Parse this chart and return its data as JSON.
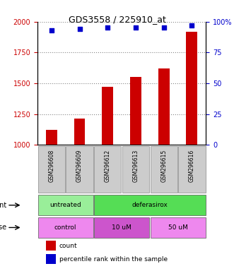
{
  "title": "GDS3558 / 225910_at",
  "samples": [
    "GSM296608",
    "GSM296609",
    "GSM296612",
    "GSM296613",
    "GSM296615",
    "GSM296616"
  ],
  "counts": [
    1120,
    1210,
    1470,
    1550,
    1620,
    1920
  ],
  "percentiles": [
    93,
    94,
    95,
    95,
    95,
    97
  ],
  "ylim_left": [
    1000,
    2000
  ],
  "ylim_right": [
    0,
    100
  ],
  "yticks_left": [
    1000,
    1250,
    1500,
    1750,
    2000
  ],
  "yticks_right": [
    0,
    25,
    50,
    75,
    100
  ],
  "bar_color": "#cc0000",
  "dot_color": "#0000cc",
  "agent_groups": [
    {
      "label": "untreated",
      "span": [
        0,
        2
      ],
      "color": "#99ee99"
    },
    {
      "label": "deferasirox",
      "span": [
        2,
        6
      ],
      "color": "#55dd55"
    }
  ],
  "dose_groups": [
    {
      "label": "control",
      "span": [
        0,
        2
      ],
      "color": "#ee88ee"
    },
    {
      "label": "10 uM",
      "span": [
        2,
        4
      ],
      "color": "#cc55cc"
    },
    {
      "label": "50 uM",
      "span": [
        4,
        6
      ],
      "color": "#ee88ee"
    }
  ],
  "tick_label_color_left": "#cc0000",
  "tick_label_color_right": "#0000cc",
  "title_color": "#000000",
  "grid_color": "#888888",
  "bar_width": 0.4,
  "legend_count_label": "count",
  "legend_pct_label": "percentile rank within the sample"
}
